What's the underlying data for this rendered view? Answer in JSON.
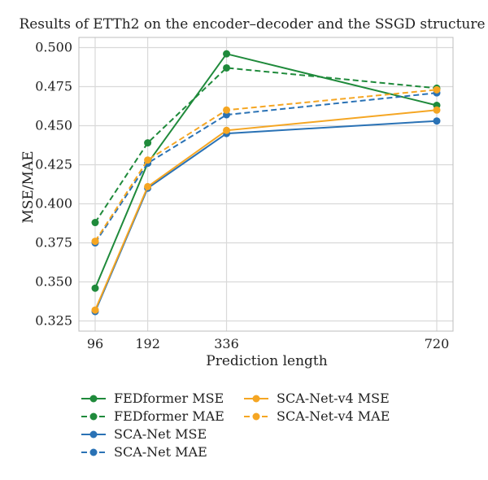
{
  "chart_data": {
    "type": "line",
    "title": "Results of ETTh2 on the encoder–decoder and the SSGD structure",
    "xlabel": "Prediction length",
    "ylabel": "MSE/MAE",
    "x": [
      96,
      192,
      336,
      720
    ],
    "x_tick_labels": [
      "96",
      "192",
      "336",
      "720"
    ],
    "ylim": [
      0.325,
      0.5
    ],
    "y_ticks": [
      0.325,
      0.35,
      0.375,
      0.4,
      0.425,
      0.45,
      0.475,
      0.5
    ],
    "y_tick_labels": [
      "0.325",
      "0.350",
      "0.375",
      "0.400",
      "0.425",
      "0.450",
      "0.475",
      "0.500"
    ],
    "grid": true,
    "legend_position": "below",
    "series": [
      {
        "name": "FEDformer MSE",
        "values": [
          0.346,
          0.426,
          0.496,
          0.463
        ],
        "color": "#1f8a3b",
        "dash": "solid"
      },
      {
        "name": "FEDformer MAE",
        "values": [
          0.388,
          0.439,
          0.487,
          0.474
        ],
        "color": "#1f8a3b",
        "dash": "dashed"
      },
      {
        "name": "SCA-Net MSE",
        "values": [
          0.331,
          0.41,
          0.445,
          0.453
        ],
        "color": "#2a72b5",
        "dash": "solid"
      },
      {
        "name": "SCA-Net MAE",
        "values": [
          0.375,
          0.426,
          0.457,
          0.471
        ],
        "color": "#2a72b5",
        "dash": "dashed"
      },
      {
        "name": "SCA-Net-v4 MSE",
        "values": [
          0.332,
          0.411,
          0.447,
          0.46
        ],
        "color": "#f5a623",
        "dash": "solid"
      },
      {
        "name": "SCA-Net-v4 MAE",
        "values": [
          0.376,
          0.428,
          0.46,
          0.473
        ],
        "color": "#f5a623",
        "dash": "dashed"
      }
    ]
  }
}
